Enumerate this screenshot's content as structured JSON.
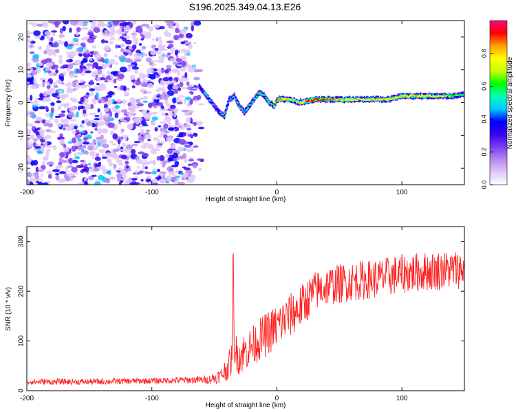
{
  "title": "S196.2025.349.04.13.E26",
  "chart_data": [
    {
      "type": "heatmap",
      "xlabel": "Height of straight line (km)",
      "ylabel": "Frequency (Hz)",
      "xlim": [
        -200,
        150
      ],
      "ylim": [
        -25,
        25
      ],
      "xticks": [
        -200,
        -100,
        0,
        100
      ],
      "yticks": [
        -20,
        -10,
        0,
        10,
        20
      ],
      "colorbar": {
        "label": "Normalized spectral amplitude",
        "range": [
          0.0,
          1.0
        ],
        "ticks": [
          0.0,
          0.2,
          0.4,
          0.6,
          0.8
        ],
        "tick_labels": [
          "0.0",
          "0.2",
          "0.4",
          "0.6",
          "0.8"
        ],
        "colors": [
          "#ffffff",
          "#e0c8f8",
          "#b488f0",
          "#7c3cf0",
          "#3c00f0",
          "#0000ff",
          "#00c8ff",
          "#00ffb4",
          "#00ff00",
          "#c8ff00",
          "#ffff00",
          "#ffa000",
          "#ff0000",
          "#ff0080"
        ]
      },
      "ridge": {
        "x": [
          -62,
          -58,
          -54,
          -50,
          -46,
          -42,
          -38,
          -34,
          -30,
          -26,
          -22,
          -18,
          -14,
          -10,
          -6,
          -2,
          0,
          10,
          20,
          30,
          40,
          50,
          60,
          70,
          80,
          90,
          100,
          110,
          120,
          130,
          140,
          150
        ],
        "y": [
          5,
          3,
          1,
          -1,
          -3,
          -4,
          1,
          2,
          -1,
          -3,
          -1,
          1,
          3,
          2,
          0,
          -1,
          1,
          1,
          0,
          1,
          1,
          1,
          1,
          1,
          1,
          1,
          2,
          2,
          2,
          2,
          2,
          2.5
        ],
        "amplitude": [
          0.35,
          0.45,
          0.5,
          0.4,
          0.45,
          0.55,
          0.45,
          0.5,
          0.55,
          0.5,
          0.55,
          0.5,
          0.6,
          0.55,
          0.6,
          0.7,
          0.9,
          0.75,
          0.8,
          0.95,
          0.9,
          0.8,
          0.75,
          0.7,
          0.85,
          0.7,
          0.75,
          0.8,
          0.75,
          0.7,
          0.65,
          0.55
        ]
      }
    },
    {
      "type": "line",
      "xlabel": "Height of straight line (km)",
      "ylabel": "SNR (10 * v/v)",
      "xlim": [
        -200,
        150
      ],
      "ylim": [
        0,
        330
      ],
      "xticks": [
        -200,
        -100,
        0,
        100
      ],
      "yticks": [
        0,
        100,
        200,
        300
      ],
      "color": "#ff2020",
      "series": [
        {
          "name": "SNR",
          "trend_x": [
            -200,
            -150,
            -100,
            -55,
            -45,
            -40,
            -36,
            -35,
            -34,
            -30,
            -20,
            -10,
            0,
            10,
            20,
            30,
            40,
            60,
            80,
            100,
            120,
            150
          ],
          "trend_y": [
            18,
            18,
            20,
            22,
            30,
            45,
            60,
            260,
            80,
            70,
            90,
            110,
            130,
            150,
            170,
            200,
            210,
            220,
            225,
            235,
            240,
            245
          ],
          "noise_amplitude": [
            6,
            6,
            6,
            8,
            15,
            25,
            35,
            0,
            35,
            40,
            40,
            45,
            45,
            45,
            45,
            40,
            40,
            40,
            40,
            40,
            40,
            40
          ]
        }
      ]
    }
  ]
}
